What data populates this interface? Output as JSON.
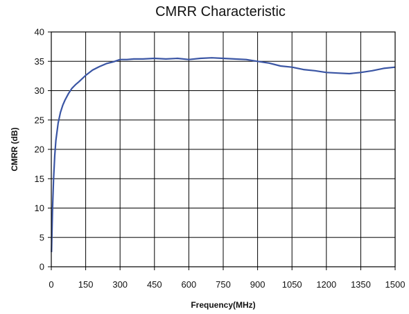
{
  "chart_data": {
    "type": "line",
    "title": "CMRR Characteristic",
    "xlabel": "Frequency(MHz)",
    "ylabel": "CMRR (dB)",
    "xlim": [
      0,
      1500
    ],
    "ylim": [
      0,
      40
    ],
    "xticks": [
      0,
      150,
      300,
      450,
      600,
      750,
      900,
      1050,
      1200,
      1350,
      1500
    ],
    "yticks": [
      0,
      5,
      10,
      15,
      20,
      25,
      30,
      35,
      40
    ],
    "grid": true,
    "line_color": "#3a55a4",
    "series": [
      {
        "x": [
          1,
          5,
          10,
          15,
          20,
          30,
          40,
          50,
          60,
          75,
          90,
          105,
          120,
          150,
          180,
          210,
          240,
          270,
          300,
          330,
          360,
          400,
          450,
          500,
          550,
          600,
          650,
          700,
          750,
          800,
          850,
          900,
          950,
          1000,
          1050,
          1100,
          1150,
          1200,
          1250,
          1300,
          1350,
          1400,
          1450,
          1500
        ],
        "y": [
          2.5,
          9.5,
          15,
          19,
          21.5,
          24.5,
          26.3,
          27.5,
          28.4,
          29.5,
          30.4,
          31.0,
          31.5,
          32.6,
          33.5,
          34.1,
          34.6,
          34.9,
          35.3,
          35.3,
          35.4,
          35.4,
          35.5,
          35.4,
          35.5,
          35.3,
          35.5,
          35.6,
          35.5,
          35.4,
          35.3,
          35.0,
          34.7,
          34.2,
          34.0,
          33.6,
          33.4,
          33.1,
          33.0,
          32.9,
          33.1,
          33.4,
          33.8,
          34.0
        ]
      }
    ]
  }
}
